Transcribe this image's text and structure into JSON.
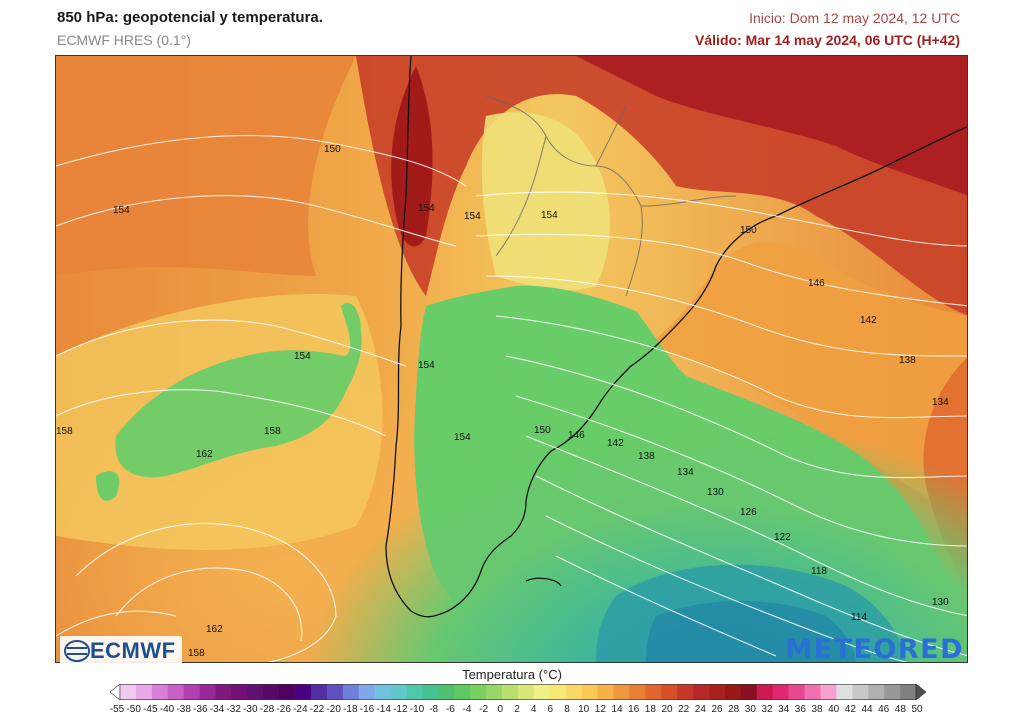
{
  "header": {
    "title": "850 hPa: geopotencial y temperatura.",
    "model": "ECMWF HRES (0.1°)",
    "init": "Inicio: Dom 12 may 2024, 12 UTC",
    "valid": "Válido: Mar 14 may 2024, 06 UTC (H+42)"
  },
  "legend": {
    "title": "Temperatura (°C)",
    "ticks": [
      "-55",
      "-50",
      "-45",
      "-40",
      "-38",
      "-36",
      "-34",
      "-32",
      "-30",
      "-28",
      "-26",
      "-24",
      "-22",
      "-20",
      "-18",
      "-16",
      "-14",
      "-12",
      "-10",
      "-8",
      "-6",
      "-4",
      "-2",
      "0",
      "2",
      "4",
      "6",
      "8",
      "10",
      "12",
      "14",
      "16",
      "18",
      "20",
      "22",
      "24",
      "26",
      "28",
      "30",
      "32",
      "34",
      "36",
      "38",
      "40",
      "42",
      "44",
      "46",
      "48",
      "50"
    ],
    "colors": [
      "#ffffff",
      "#f0c8f0",
      "#e8a8e8",
      "#d880d8",
      "#c860c8",
      "#b040b0",
      "#982898",
      "#801880",
      "#701078",
      "#601070",
      "#580868",
      "#500060",
      "#480080",
      "#5030a0",
      "#6050c0",
      "#7080d8",
      "#80a8e8",
      "#70c0e0",
      "#60c8c8",
      "#50c8a8",
      "#48c090",
      "#50c070",
      "#60c860",
      "#78d060",
      "#98d868",
      "#b8e070",
      "#d8e878",
      "#f0f088",
      "#f8e878",
      "#f8d868",
      "#f8c858",
      "#f8b048",
      "#f09840",
      "#e88038",
      "#e06830",
      "#d85028",
      "#c83828",
      "#b82828",
      "#a82020",
      "#981818",
      "#881020",
      "#d01850",
      "#e02870",
      "#e84890",
      "#f070b0",
      "#f8a0d0",
      "#e0e0e0",
      "#c8c8c8",
      "#b0b0b0",
      "#989898",
      "#808080",
      "#505050"
    ]
  },
  "map": {
    "contour_labels": [
      {
        "text": "150"
      },
      {
        "text": "154"
      },
      {
        "text": "154"
      },
      {
        "text": "154"
      },
      {
        "text": "154"
      },
      {
        "text": "150"
      },
      {
        "text": "146"
      },
      {
        "text": "142"
      },
      {
        "text": "138"
      },
      {
        "text": "134"
      },
      {
        "text": "154"
      },
      {
        "text": "154"
      },
      {
        "text": "158"
      },
      {
        "text": "158"
      },
      {
        "text": "162"
      },
      {
        "text": "150"
      },
      {
        "text": "146"
      },
      {
        "text": "142"
      },
      {
        "text": "138"
      },
      {
        "text": "134"
      },
      {
        "text": "130"
      },
      {
        "text": "126"
      },
      {
        "text": "122"
      },
      {
        "text": "118"
      },
      {
        "text": "114"
      },
      {
        "text": "130"
      },
      {
        "text": "162"
      },
      {
        "text": "158"
      },
      {
        "text": "154"
      }
    ]
  },
  "logos": {
    "left": "ECMWF",
    "right": "METEORED"
  }
}
